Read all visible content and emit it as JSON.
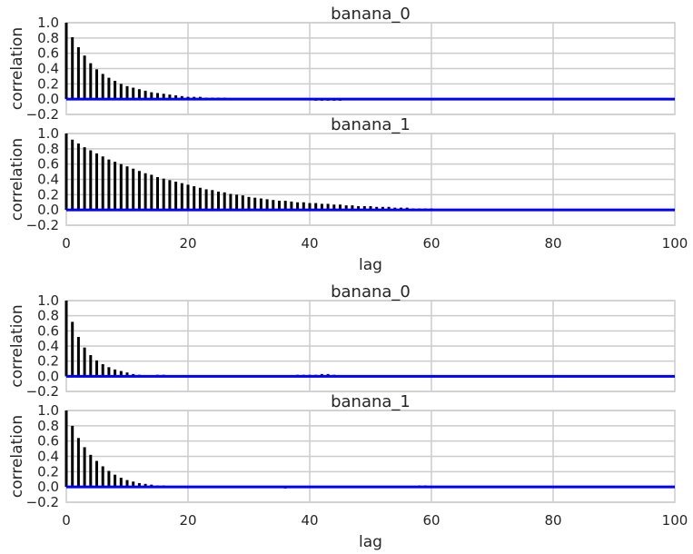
{
  "chart_data": [
    {
      "type": "bar",
      "title": "banana_0",
      "ylabel": "correlation",
      "xlabel": "",
      "xlim": [
        0,
        100
      ],
      "ylim": [
        -0.2,
        1.0
      ],
      "x_ticks": [],
      "y_ticks": [
        "1.0",
        "0.8",
        "0.6",
        "0.4",
        "0.2",
        "0.0",
        "−0.2"
      ],
      "grid": true,
      "series": [
        {
          "x": [
            0,
            1,
            2,
            3,
            4,
            5,
            6,
            7,
            8,
            9,
            10,
            11,
            12,
            13,
            14,
            15,
            16,
            17,
            18,
            19,
            20,
            21,
            22,
            23,
            24,
            25,
            26,
            27,
            34,
            35,
            36,
            37,
            38,
            39,
            40,
            41,
            42,
            43,
            44,
            45,
            46,
            47,
            48,
            49,
            50,
            51,
            52,
            53,
            54,
            55,
            56,
            57,
            58,
            59,
            60,
            61,
            62,
            63,
            64,
            65,
            66,
            67,
            68,
            69,
            70,
            71,
            72,
            73,
            74,
            75,
            76,
            77,
            78,
            79,
            80,
            81,
            82,
            83
          ],
          "values": [
            1.0,
            0.81,
            0.68,
            0.57,
            0.47,
            0.39,
            0.33,
            0.28,
            0.24,
            0.2,
            0.17,
            0.15,
            0.13,
            0.11,
            0.09,
            0.08,
            0.07,
            0.06,
            0.05,
            0.04,
            0.03,
            0.03,
            0.03,
            0.02,
            0.02,
            0.02,
            0.02,
            0.01,
            0.0,
            0.0,
            0.0,
            0.0,
            0.0,
            0.0,
            -0.01,
            -0.02,
            -0.02,
            -0.02,
            -0.02,
            -0.02,
            -0.01,
            0.0,
            0.0,
            0.0,
            0.0,
            0.0,
            0.0,
            0.0,
            0.0,
            0.0,
            0.0,
            0.0,
            0.0,
            0.0,
            0.0,
            0.0,
            0.0,
            0.0,
            0.0,
            0.0,
            0.0,
            0.01,
            0.01,
            0.01,
            0.01,
            0.01,
            0.01,
            0.01,
            0.01,
            0.01,
            0.01,
            0.01,
            0.0,
            0.0,
            0.0,
            0.01,
            0.01,
            0.0
          ]
        }
      ]
    },
    {
      "type": "bar",
      "title": "banana_1",
      "ylabel": "correlation",
      "xlabel": "lag",
      "xlim": [
        0,
        100
      ],
      "ylim": [
        -0.2,
        1.0
      ],
      "x_ticks": [
        "0",
        "20",
        "40",
        "60",
        "80",
        "100"
      ],
      "y_ticks": [
        "1.0",
        "0.8",
        "0.6",
        "0.4",
        "0.2",
        "0.0",
        "−0.2"
      ],
      "grid": true,
      "series": [
        {
          "x": [
            0,
            1,
            2,
            3,
            4,
            5,
            6,
            7,
            8,
            9,
            10,
            11,
            12,
            13,
            14,
            15,
            16,
            17,
            18,
            19,
            20,
            21,
            22,
            23,
            24,
            25,
            26,
            27,
            28,
            29,
            30,
            31,
            32,
            33,
            34,
            35,
            36,
            37,
            38,
            39,
            40,
            41,
            42,
            43,
            44,
            45,
            46,
            47,
            48,
            49,
            50,
            51,
            52,
            53,
            54,
            55,
            56,
            57,
            58,
            59,
            60,
            61,
            62,
            63,
            64,
            65,
            66,
            67
          ],
          "values": [
            1.0,
            0.92,
            0.87,
            0.82,
            0.78,
            0.74,
            0.7,
            0.66,
            0.63,
            0.6,
            0.57,
            0.54,
            0.51,
            0.48,
            0.46,
            0.43,
            0.41,
            0.39,
            0.37,
            0.35,
            0.33,
            0.31,
            0.29,
            0.27,
            0.26,
            0.24,
            0.23,
            0.21,
            0.2,
            0.19,
            0.17,
            0.16,
            0.15,
            0.14,
            0.13,
            0.12,
            0.12,
            0.11,
            0.1,
            0.1,
            0.09,
            0.09,
            0.08,
            0.08,
            0.07,
            0.07,
            0.06,
            0.06,
            0.05,
            0.05,
            0.05,
            0.04,
            0.04,
            0.04,
            0.03,
            0.03,
            0.03,
            0.02,
            0.02,
            0.02,
            0.02,
            0.01,
            0.01,
            0.01,
            0.01,
            0.01,
            0.01,
            0.01
          ]
        }
      ]
    },
    {
      "type": "bar",
      "title": "banana_0",
      "ylabel": "correlation",
      "xlabel": "",
      "xlim": [
        0,
        100
      ],
      "ylim": [
        -0.2,
        1.0
      ],
      "x_ticks": [],
      "y_ticks": [
        "1.0",
        "0.8",
        "0.6",
        "0.4",
        "0.2",
        "0.0",
        "−0.2"
      ],
      "grid": true,
      "series": [
        {
          "x": [
            0,
            1,
            2,
            3,
            4,
            5,
            6,
            7,
            8,
            9,
            10,
            11,
            12,
            13,
            14,
            15,
            16,
            17,
            18,
            19,
            35,
            36,
            37,
            38,
            39,
            40,
            41,
            42,
            43,
            44,
            45,
            53,
            54,
            55,
            56,
            57,
            81,
            87,
            88,
            89
          ],
          "values": [
            1.0,
            0.72,
            0.52,
            0.38,
            0.28,
            0.21,
            0.16,
            0.12,
            0.09,
            0.07,
            0.05,
            0.03,
            0.02,
            0.01,
            0.01,
            0.02,
            0.02,
            0.01,
            0.01,
            0.01,
            0.01,
            0.01,
            0.01,
            0.02,
            0.02,
            0.02,
            0.02,
            0.03,
            0.03,
            0.02,
            0.01,
            0.01,
            0.01,
            0.01,
            0.01,
            0.01,
            0.01,
            -0.01,
            -0.01,
            -0.01
          ]
        }
      ]
    },
    {
      "type": "bar",
      "title": "banana_1",
      "ylabel": "correlation",
      "xlabel": "lag",
      "xlim": [
        0,
        100
      ],
      "ylim": [
        -0.2,
        1.0
      ],
      "x_ticks": [
        "0",
        "20",
        "40",
        "60",
        "80",
        "100"
      ],
      "y_ticks": [
        "1.0",
        "0.8",
        "0.6",
        "0.4",
        "0.2",
        "0.0",
        "−0.2"
      ],
      "grid": true,
      "series": [
        {
          "x": [
            0,
            1,
            2,
            3,
            4,
            5,
            6,
            7,
            8,
            9,
            10,
            11,
            12,
            13,
            14,
            15,
            16,
            17,
            18,
            19,
            20,
            21,
            34,
            35,
            36,
            37,
            38,
            39,
            40,
            47,
            53,
            54,
            55,
            58,
            59,
            86
          ],
          "values": [
            1.0,
            0.8,
            0.64,
            0.52,
            0.42,
            0.34,
            0.27,
            0.21,
            0.16,
            0.12,
            0.09,
            0.07,
            0.05,
            0.04,
            0.03,
            0.02,
            0.02,
            0.01,
            0.01,
            0.01,
            0.01,
            0.01,
            -0.01,
            -0.01,
            -0.02,
            -0.01,
            -0.01,
            -0.01,
            -0.01,
            0.01,
            0.01,
            0.01,
            0.01,
            0.02,
            0.02,
            -0.01
          ]
        }
      ]
    }
  ]
}
